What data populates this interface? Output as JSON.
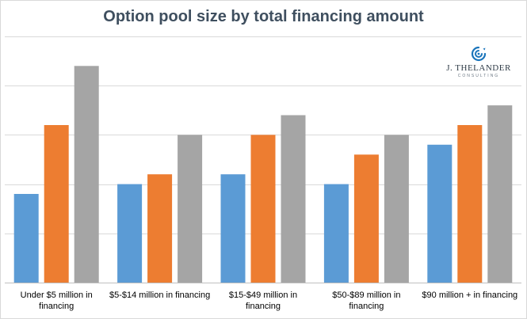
{
  "chart_data": {
    "type": "bar",
    "title": "Option pool size by total financing amount",
    "categories": [
      [
        "Under $5 million in",
        "financing"
      ],
      [
        "$5-$14 million in financing"
      ],
      [
        "$15-$49 million in",
        "financing"
      ],
      [
        "$50-$89 million in",
        "financing"
      ],
      [
        "$90 million + in financing"
      ]
    ],
    "series": [
      {
        "values": [
          9,
          10,
          11,
          10,
          14
        ],
        "color": "#5b9bd5"
      },
      {
        "values": [
          16,
          11,
          15,
          13,
          16
        ],
        "color": "#ed7d31"
      },
      {
        "values": [
          22,
          15,
          17,
          15,
          18
        ],
        "color": "#a5a5a5"
      }
    ],
    "ylim": [
      0,
      25
    ],
    "grid": true,
    "gridlines": [
      0,
      5,
      10,
      15,
      20,
      25
    ],
    "gridline_color": "#d9d9d9"
  },
  "logo": {
    "name": "J. THELANDER",
    "subtitle": "CONSULTING",
    "accent_color": "#1b75bb",
    "icon": "swirl-icon"
  }
}
